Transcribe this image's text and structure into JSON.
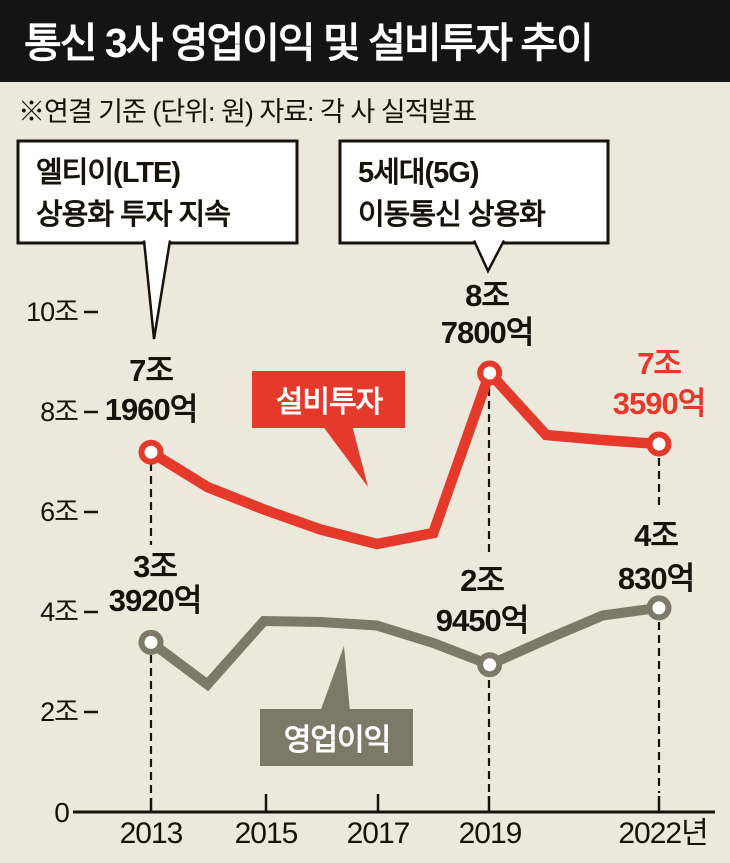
{
  "header": {
    "title": "통신 3사 영업이익 및 설비투자 추이",
    "subtitle": "※연결 기준 (단위: 원) 자료: 각 사 실적발표"
  },
  "annotations": {
    "lte": {
      "line1": "엘티이(LTE)",
      "line2": "상용화 투자 지속"
    },
    "g5": {
      "line1": "5세대(5G)",
      "line2": "이동통신 상용화"
    }
  },
  "series_labels": {
    "capex": "설비투자",
    "profit": "영업이익"
  },
  "point_labels": {
    "capex_2013": {
      "line1": "7조",
      "line2": "1960억"
    },
    "capex_2019": {
      "line1": "8조",
      "line2": "7800억"
    },
    "capex_2022": {
      "line1": "7조",
      "line2": "3590억"
    },
    "profit_2013": {
      "line1": "3조",
      "line2": "3920억"
    },
    "profit_2019": {
      "line1": "2조",
      "line2": "9450억"
    },
    "profit_2022": {
      "line1": "4조",
      "line2": "830억"
    }
  },
  "y_axis": {
    "tick_labels": [
      "10조",
      "8조",
      "6조",
      "4조",
      "2조"
    ],
    "zero_label": "0"
  },
  "x_axis": {
    "labels": [
      "2013",
      "2015",
      "2017",
      "2019",
      "2022년"
    ]
  },
  "colors": {
    "capex": "#e5392c",
    "profit": "#7c7968",
    "background": "#ece9dc",
    "title_bg": "#141414",
    "title_fg": "#ffffff",
    "ink": "#15130c"
  },
  "chart_data": {
    "type": "line",
    "title": "통신 3사 영업이익 및 설비투자 추이",
    "note": "※연결 기준 (단위: 원) 자료: 각 사 실적발표",
    "unit": "KRW, values in 조 (trillion won)",
    "x": [
      2013,
      2014,
      2015,
      2016,
      2017,
      2018,
      2019,
      2020,
      2021,
      2022
    ],
    "series": [
      {
        "name": "설비투자",
        "color": "#e5392c",
        "values": [
          7.196,
          6.5,
          6.05,
          5.65,
          5.36,
          5.58,
          8.78,
          7.54,
          7.44,
          7.359
        ],
        "marker_years": [
          2013,
          2019,
          2022
        ],
        "labeled_values": {
          "2013": "7조 1960억",
          "2019": "8조 7800억",
          "2022": "7조 3590억"
        }
      },
      {
        "name": "영업이익",
        "color": "#7c7968",
        "values": [
          3.392,
          2.55,
          3.82,
          3.8,
          3.73,
          3.38,
          2.945,
          3.45,
          3.93,
          4.083
        ],
        "marker_years": [
          2013,
          2019,
          2022
        ],
        "labeled_values": {
          "2013": "3조 3920억",
          "2019": "2조 9450억",
          "2022": "4조 830억"
        }
      }
    ],
    "ylim": [
      0,
      10.5
    ],
    "y_ticks_trillions": [
      0,
      2,
      4,
      6,
      8,
      10
    ],
    "x_tick_labels": [
      "2013",
      "2015",
      "2017",
      "2019",
      "2022년"
    ],
    "grid": false,
    "legend": "inline-labels",
    "annotations": [
      "엘티이(LTE) 상용화 투자 지속 → 2013",
      "5세대(5G) 이동통신 상용화 → 2019"
    ]
  }
}
